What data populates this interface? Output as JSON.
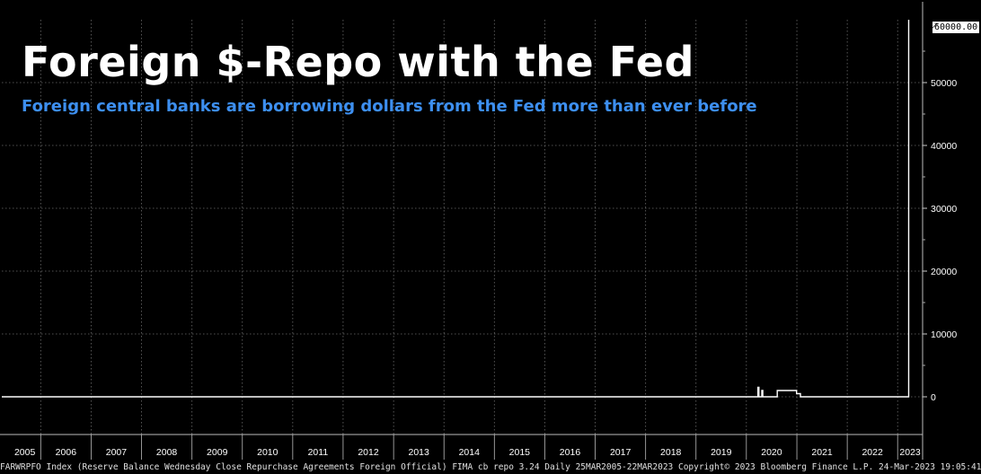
{
  "title": "Foreign $-Repo with the Fed",
  "subtitle": "Foreign central banks are borrowing dollars from the Fed more than ever before",
  "footer": "FARWRPFO Index (Reserve Balance Wednesday Close Repurchase Agreements Foreign Official) FIMA cb repo 3.24  Daily 25MAR2005-22MAR2023 Copyright© 2023 Bloomberg Finance L.P. 24-Mar-2023 19:05:41",
  "last_value_label": "60000.00",
  "colors": {
    "background": "#000000",
    "line": "#ffffff",
    "subtitle": "#3d8ff0",
    "grid": "#6b6b6b"
  },
  "chart_data": {
    "type": "line",
    "title": "Foreign $-Repo with the Fed",
    "subtitle": "Foreign central banks are borrowing dollars from the Fed more than ever before",
    "xlabel": "",
    "ylabel": "",
    "x_range": [
      "2005-03-25",
      "2023-03-22"
    ],
    "ylim": [
      -6000,
      60000
    ],
    "y_ticks": [
      0,
      10000,
      20000,
      30000,
      40000,
      50000
    ],
    "y_tick_labels": [
      "0",
      "10000",
      "20000",
      "30000",
      "40000",
      "50000"
    ],
    "x_tick_labels": [
      "2005",
      "2006",
      "2007",
      "2008",
      "2009",
      "2010",
      "2011",
      "2012",
      "2013",
      "2014",
      "2015",
      "2016",
      "2017",
      "2018",
      "2019",
      "2020",
      "2021",
      "2022",
      "2023"
    ],
    "grid": true,
    "series": [
      {
        "values_note": "",
        "points": [
          [
            "2005-03-25",
            0
          ],
          [
            "2020-03-18",
            0
          ],
          [
            "2020-03-25",
            1500
          ],
          [
            "2020-04-01",
            0
          ],
          [
            "2020-04-15",
            0
          ],
          [
            "2020-04-22",
            1000
          ],
          [
            "2020-04-29",
            0
          ],
          [
            "2020-08-05",
            0
          ],
          [
            "2020-08-12",
            1000
          ],
          [
            "2020-09-30",
            1000
          ],
          [
            "2020-10-07",
            1000
          ],
          [
            "2020-12-23",
            1000
          ],
          [
            "2020-12-30",
            500
          ],
          [
            "2021-01-20",
            500
          ],
          [
            "2021-01-27",
            0
          ],
          [
            "2023-03-08",
            0
          ],
          [
            "2023-03-15",
            0
          ],
          [
            "2023-03-22",
            60000
          ]
        ]
      }
    ]
  }
}
